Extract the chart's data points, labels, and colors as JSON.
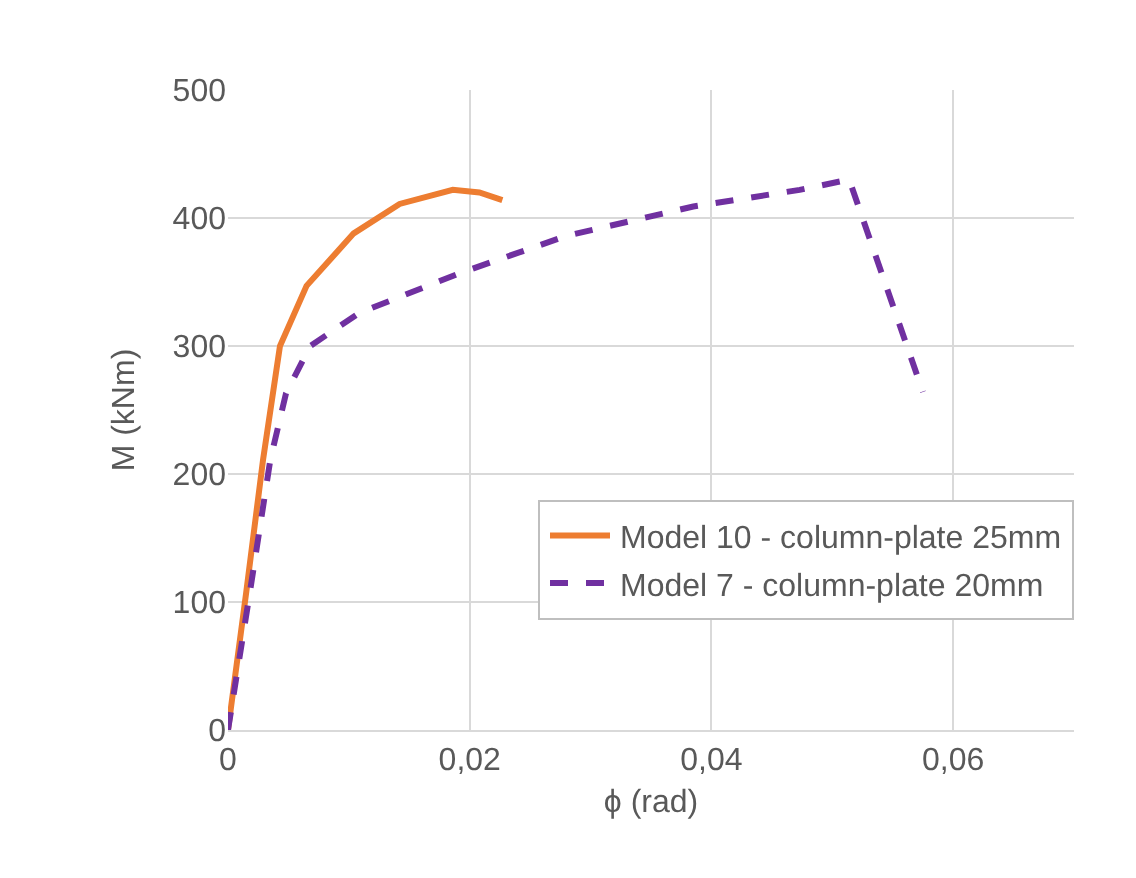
{
  "chart_data": {
    "type": "line",
    "xlabel": "ϕ (rad)",
    "ylabel": "M (kNm)",
    "xlim": [
      0,
      0.07
    ],
    "xticks": [
      0,
      {
        "value": 0.02,
        "label": "0,02"
      },
      {
        "value": 0.04,
        "label": "0,04"
      },
      {
        "value": 0.06,
        "label": "0,06"
      }
    ],
    "ylim": [
      0,
      500
    ],
    "yticks": [
      0,
      100,
      200,
      300,
      400,
      500
    ],
    "grid": true,
    "legend": "bottom",
    "marker": "none",
    "series": [
      {
        "name": "Model 10 - column-plate 25mm",
        "color": "#ed7d31",
        "line_style": "solid",
        "x": [
          0,
          0.0015,
          0.0029,
          0.0043,
          0.0065,
          0.0104,
          0.0142,
          0.0186,
          0.0208,
          0.0227
        ],
        "values": [
          0,
          107,
          211,
          300,
          347,
          388,
          411,
          422,
          420,
          414
        ]
      },
      {
        "name": "Model 7 - column-plate 20mm",
        "color": "#7030a0",
        "line_style": "dashed",
        "x": [
          0,
          0.0018,
          0.0035,
          0.0048,
          0.0068,
          0.0109,
          0.0192,
          0.028,
          0.0385,
          0.0473,
          0.0514,
          0.0575
        ],
        "values": [
          0,
          107,
          211,
          263,
          300,
          326,
          357,
          386,
          409,
          422,
          430,
          264
        ]
      }
    ]
  }
}
